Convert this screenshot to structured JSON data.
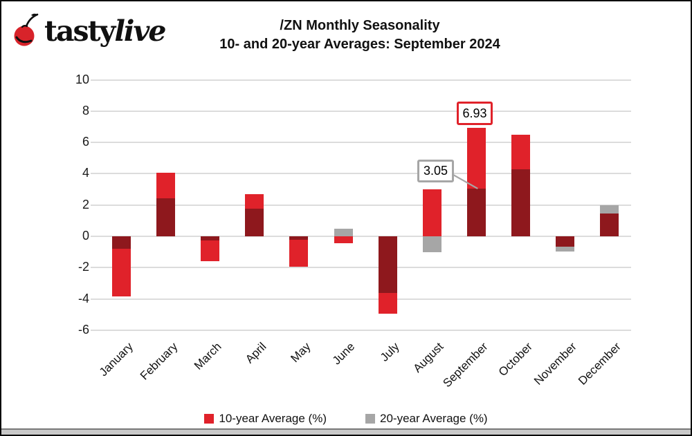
{
  "branding": {
    "logo_bold": "tasty",
    "logo_italic": "live",
    "cherry_color": "#d8232a"
  },
  "title": {
    "line1": "/ZN Monthly Seasonality",
    "line2": "10- and 20-year Averages: September 2024"
  },
  "chart_data": {
    "type": "bar",
    "title": "/ZN Monthly Seasonality",
    "subtitle": "10- and 20-year Averages: September 2024",
    "categories": [
      "January",
      "February",
      "March",
      "April",
      "May",
      "June",
      "July",
      "August",
      "September",
      "October",
      "November",
      "December"
    ],
    "series": [
      {
        "name": "10-year Average (%)",
        "color": "#e0222a",
        "values": [
          -3.85,
          4.05,
          -1.6,
          2.7,
          -1.95,
          -0.45,
          -4.95,
          3.0,
          6.93,
          6.5,
          -0.65,
          1.45
        ]
      },
      {
        "name": "20-year Average (%)",
        "color": "#a6a6a6",
        "values": [
          -0.8,
          2.45,
          -0.25,
          1.75,
          -0.2,
          0.5,
          -3.6,
          -1.0,
          3.05,
          4.3,
          -0.95,
          2.0
        ]
      }
    ],
    "overlap_color": "#8e181d",
    "bar_style": "overlaid",
    "ylim": [
      -6,
      10
    ],
    "yticks": [
      10,
      8,
      6,
      4,
      2,
      0,
      -2,
      -4,
      -6
    ],
    "grid": true,
    "gridline_color": "#dcdcdc",
    "legend_position": "bottom",
    "annotations": [
      {
        "label": "6.93",
        "month": "September",
        "series": "10-year Average (%)",
        "box_color": "#e0222a"
      },
      {
        "label": "3.05",
        "month": "September",
        "series": "20-year Average (%)",
        "box_color": "#a6a6a6",
        "leader_line": true
      }
    ]
  },
  "legend": {
    "items": [
      {
        "label": "10-year Average (%)",
        "color": "#e0222a"
      },
      {
        "label": "20-year Average (%)",
        "color": "#a6a6a6"
      }
    ]
  }
}
